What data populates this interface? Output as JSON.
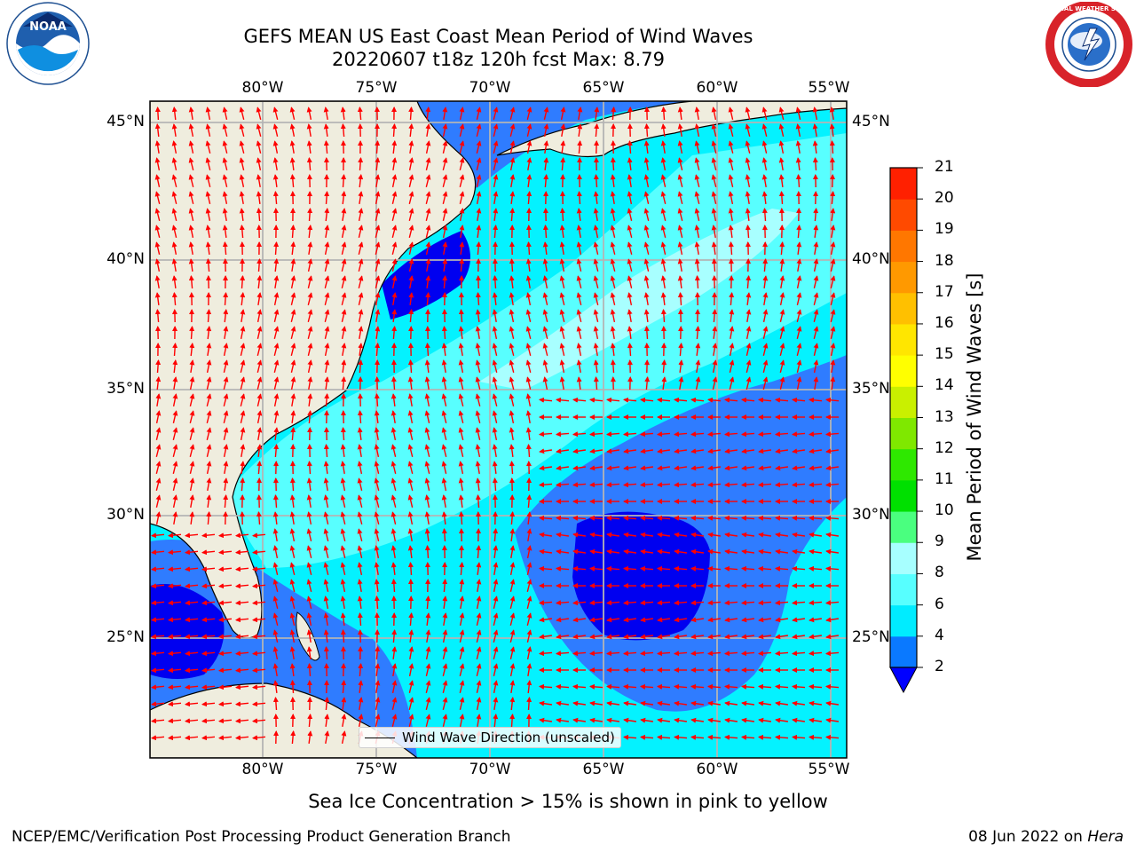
{
  "title": {
    "line1": "GEFS MEAN US East Coast Mean Period of Wind Waves",
    "line2": "20220607 t18z 120h fcst   Max: 8.79"
  },
  "logos": {
    "noaa": {
      "text": "NOAA",
      "icon": "noaa-logo-icon"
    },
    "nws": {
      "text": "NATIONAL WEATHER SERVICE",
      "icon": "nws-logo-icon"
    }
  },
  "map": {
    "lon_ticks": [
      "80°W",
      "75°W",
      "70°W",
      "65°W",
      "60°W",
      "55°W"
    ],
    "lat_ticks": [
      "45°N",
      "40°N",
      "35°N",
      "30°N",
      "25°N"
    ],
    "legend": "Wind Wave Direction (unscaled)",
    "colors": {
      "land": "#efedde",
      "ocean_2_4": "#2f7cff",
      "ocean_4_6": "#04f2ff",
      "ocean_6_8": "#58ffff",
      "ocean_8_9": "#a8ffff",
      "ocean_low": "#0000f0",
      "arrow": "#ff0000",
      "grid": "#b4b4b4"
    }
  },
  "colorbar": {
    "label": "Mean Period of Wind Waves [s]",
    "ticks": [
      "2",
      "4",
      "6",
      "8",
      "9",
      "10",
      "11",
      "12",
      "13",
      "14",
      "15",
      "16",
      "17",
      "18",
      "19",
      "20",
      "21"
    ],
    "colors": [
      "#0a79ff",
      "#00ecff",
      "#57ffff",
      "#a7ffff",
      "#4aff7f",
      "#00e000",
      "#2ee800",
      "#7fe800",
      "#c9f000",
      "#ffff00",
      "#ffe600",
      "#ffc000",
      "#ff9900",
      "#ff7700",
      "#ff4a00",
      "#ff2000",
      "#ff0000"
    ]
  },
  "footer": {
    "note": "Sea Ice Concentration > 15% is shown in pink to yellow",
    "left": "NCEP/EMC/Verification Post Processing Product Generation Branch",
    "date": "08 Jun 2022 on ",
    "machine": "Hera"
  }
}
